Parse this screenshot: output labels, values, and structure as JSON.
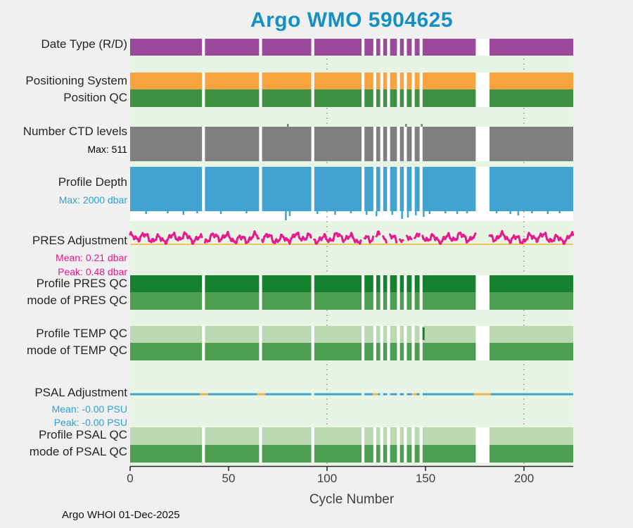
{
  "title": "Argo WMO 5904625",
  "footer": "Argo WHOI 01-Dec-2025",
  "colors": {
    "title": "#1590c5",
    "page_bg": "#f0f0f0",
    "plot_bg": "#e8f4e3",
    "row_backing": "#ffffff",
    "gridline": "#bbbbbb",
    "axis": "#262626"
  },
  "chart_data": {
    "type": "bar",
    "title": "Argo WMO 5904625",
    "xlabel": "Cycle Number",
    "xlim": [
      0,
      225
    ],
    "xticks": [
      0,
      50,
      100,
      150,
      200
    ],
    "gridlines_x": [
      100,
      200
    ],
    "grid": "dotted-vertical",
    "legend": "none",
    "missing_cycle_ranges": [
      [
        36.5,
        38
      ],
      [
        65.5,
        67
      ],
      [
        92,
        93.5
      ],
      [
        117.5,
        119
      ],
      [
        123.5,
        125
      ],
      [
        127,
        128.5
      ],
      [
        130.5,
        132
      ],
      [
        135.5,
        137
      ],
      [
        139,
        140.5
      ],
      [
        143,
        144.5
      ],
      [
        147,
        148.5
      ],
      [
        175.5,
        182.5
      ]
    ],
    "rows": [
      {
        "id": "date_type",
        "kind": "band",
        "label": "Date Type (R/D)",
        "color": "#9b4a9b"
      },
      {
        "id": "positioning_system",
        "kind": "band",
        "label": "Positioning System",
        "color": "#f7a440"
      },
      {
        "id": "position_qc",
        "kind": "band",
        "label": "Position QC",
        "color": "#3f9243"
      },
      {
        "id": "ctd_levels",
        "kind": "band",
        "label": "Number CTD levels",
        "color": "#7f7f7f",
        "max": 511,
        "sublabels": [
          {
            "text": "Max: 511",
            "color": "#000000"
          }
        ],
        "tall_cycles": [
          80,
          140,
          148
        ]
      },
      {
        "id": "profile_depth",
        "kind": "band",
        "label": "Profile Depth",
        "color": "#41a3cf",
        "max": 2000,
        "unit": "dbar",
        "sublabels": [
          {
            "text": "Max: 2000 dbar",
            "color": "#2aa2d8"
          }
        ],
        "deep_cycles": [
          [
            8,
            4
          ],
          [
            19,
            3
          ],
          [
            27,
            5
          ],
          [
            34,
            3
          ],
          [
            46,
            4
          ],
          [
            59,
            3
          ],
          [
            79,
            13
          ],
          [
            81,
            7
          ],
          [
            95,
            4
          ],
          [
            104,
            5
          ],
          [
            112,
            3
          ],
          [
            120,
            5
          ],
          [
            125,
            7
          ],
          [
            133,
            5
          ],
          [
            138,
            11
          ],
          [
            141,
            9
          ],
          [
            145,
            6
          ],
          [
            149,
            8
          ],
          [
            152,
            4
          ],
          [
            160,
            3
          ],
          [
            166,
            4
          ],
          [
            171,
            3
          ],
          [
            186,
            3
          ],
          [
            193,
            4
          ],
          [
            197,
            6
          ],
          [
            204,
            3
          ],
          [
            212,
            4
          ],
          [
            218,
            3
          ]
        ]
      },
      {
        "id": "pres_adjustment",
        "kind": "line",
        "label": "PRES Adjustment",
        "color": "#e8188e",
        "baseline_color": "#eec45f",
        "mean": 0.21,
        "peak": 0.48,
        "unit": "dbar",
        "sublabels": [
          {
            "text": "Mean: 0.21 dbar",
            "color": "#e8188e"
          },
          {
            "text": "Peak: 0.48 dbar",
            "color": "#e8188e"
          }
        ]
      },
      {
        "id": "profile_pres_qc",
        "kind": "band",
        "label": "Profile PRES QC",
        "color": "#15802e"
      },
      {
        "id": "mode_pres_qc",
        "kind": "band",
        "label": "mode of PRES QC",
        "color": "#4d9e50"
      },
      {
        "id": "profile_temp_qc",
        "kind": "band",
        "label": "Profile TEMP QC",
        "color": "#bad9b2",
        "anomalies": [
          {
            "cycle": 149,
            "color": "#15802e"
          }
        ]
      },
      {
        "id": "mode_temp_qc",
        "kind": "band",
        "label": "mode of TEMP QC",
        "color": "#4d9e50"
      },
      {
        "id": "psal_adjustment",
        "kind": "flatline",
        "label": "PSAL Adjustment",
        "color": "#41a3cf",
        "highlight_color": "#f0b44c",
        "mean": "-0.00",
        "peak": "-0.00",
        "unit": "PSU",
        "sublabels": [
          {
            "text": "Mean: -0.00 PSU",
            "color": "#2aa2d8"
          },
          {
            "text": "Peak: -0.00 PSU",
            "color": "#2aa2d8"
          }
        ],
        "highlight_ranges": [
          [
            35.5,
            39.5
          ],
          [
            64.5,
            68.5
          ],
          [
            123,
            126
          ],
          [
            143,
            145.5
          ],
          [
            174.5,
            183
          ]
        ]
      },
      {
        "id": "profile_psal_qc",
        "kind": "band",
        "label": "Profile PSAL QC",
        "color": "#bad9b2"
      },
      {
        "id": "mode_psal_qc",
        "kind": "band",
        "label": "mode of PSAL QC",
        "color": "#4d9e50"
      }
    ]
  }
}
